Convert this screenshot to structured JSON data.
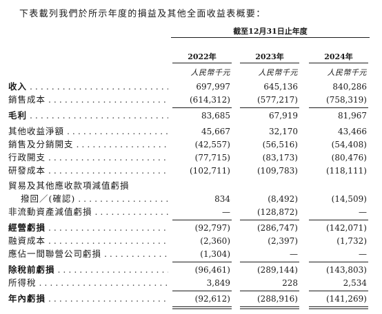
{
  "intro": "下表載列我們於所示年度的損益及其他全面收益表概要：",
  "period_header": "截至12月31日止年度",
  "years": [
    "2022年",
    "2023年",
    "2024年"
  ],
  "unit": "人民幣千元",
  "rows": [
    {
      "label": "收入",
      "values": [
        "697,997",
        "645,136",
        "840,286"
      ]
    },
    {
      "label": "銷售成本",
      "values": [
        "(614,312)",
        "(577,217)",
        "(758,319)"
      ]
    },
    {
      "label": "毛利",
      "values": [
        "83,685",
        "67,919",
        "81,967"
      ]
    },
    {
      "label": "其他收益淨額",
      "values": [
        "45,667",
        "32,170",
        "43,466"
      ]
    },
    {
      "label": "銷售及分銷開支",
      "values": [
        "(42,557)",
        "(56,516)",
        "(54,408)"
      ]
    },
    {
      "label": "行政開支",
      "values": [
        "(77,715)",
        "(83,173)",
        "(80,476)"
      ]
    },
    {
      "label": "研發成本",
      "values": [
        "(102,711)",
        "(109,783)",
        "(118,111)"
      ]
    },
    {
      "label": "貿易及其他應收款項減值虧損",
      "values": [
        "",
        "",
        ""
      ]
    },
    {
      "label": "撥回／(確認)",
      "values": [
        "834",
        "(8,492)",
        "(14,509)"
      ]
    },
    {
      "label": "非流動資產減值虧損",
      "values": [
        "—",
        "(128,872)",
        "—"
      ]
    },
    {
      "label": "經營虧損",
      "values": [
        "(92,797)",
        "(286,747)",
        "(142,071)"
      ]
    },
    {
      "label": "融資成本",
      "values": [
        "(2,360)",
        "(2,397)",
        "(1,732)"
      ]
    },
    {
      "label": "應佔一間聯營公司虧損",
      "values": [
        "(1,304)",
        "—",
        "—"
      ]
    },
    {
      "label": "除稅前虧損",
      "values": [
        "(96,461)",
        "(289,144)",
        "(143,803)"
      ]
    },
    {
      "label": "所得稅",
      "values": [
        "3,849",
        "228",
        "2,534"
      ]
    },
    {
      "label": "年內虧損",
      "values": [
        "(92,612)",
        "(288,916)",
        "(141,269)"
      ]
    }
  ]
}
